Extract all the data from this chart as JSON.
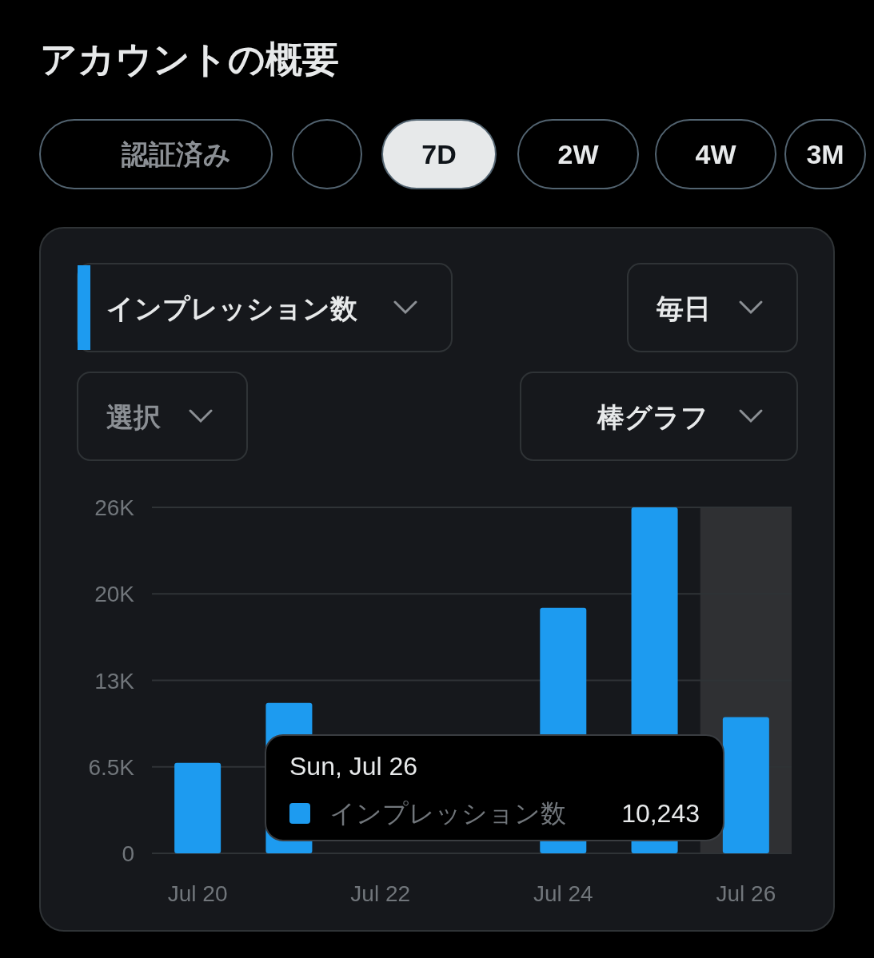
{
  "chart_data": {
    "type": "bar",
    "title": "アカウントの概要",
    "categories": [
      "Jul 20",
      null,
      "Jul 22",
      null,
      "Jul 24",
      null,
      "Jul 26"
    ],
    "series": [
      {
        "name": "インプレッション数",
        "color": "#1d9bf0",
        "values": [
          6800,
          11300,
          null,
          null,
          18450,
          26000,
          10243
        ]
      }
    ],
    "ylim": [
      0,
      26000
    ],
    "yticks": [
      {
        "value": 0,
        "label": "0"
      },
      {
        "value": 6500,
        "label": "6.5K"
      },
      {
        "value": 13000,
        "label": "13K"
      },
      {
        "value": 19500,
        "label": "20K"
      },
      {
        "value": 26000,
        "label": "26K"
      }
    ],
    "grid": "y",
    "legend": "bottom",
    "bands": [
      {
        "axis": "x",
        "from": "Jul 26",
        "to": "Jul 26",
        "color": "#2f3033"
      }
    ],
    "annotations": [
      "認証済み",
      "7D",
      "2W",
      "4W",
      "3M",
      "インプレッション数",
      "毎日",
      "選択",
      "棒グラフ",
      "Sun, Jul 26",
      "10,243"
    ]
  }
}
